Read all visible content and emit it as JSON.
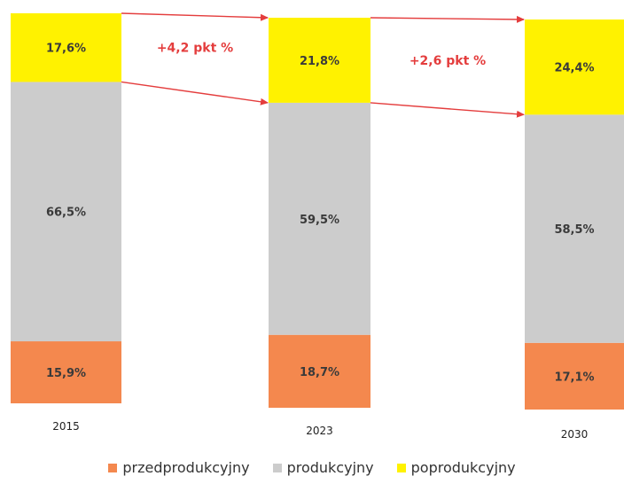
{
  "chart_data": {
    "type": "bar",
    "stacked": true,
    "categories": [
      "2015",
      "2023",
      "2030"
    ],
    "series": [
      {
        "name": "przedprodukcyjny",
        "values": [
          15.9,
          18.7,
          17.1
        ],
        "labels": [
          "15,9%",
          "18,7%",
          "17,1%"
        ],
        "color": "#f4884e"
      },
      {
        "name": "produkcyjny",
        "values": [
          66.5,
          59.5,
          58.5
        ],
        "labels": [
          "66,5%",
          "59,5%",
          "58,5%"
        ],
        "color": "#cccccc"
      },
      {
        "name": "poprodukcyjny",
        "values": [
          17.6,
          21.8,
          24.4
        ],
        "labels": [
          "17,6%",
          "21,8%",
          "24,4%"
        ],
        "color": "#fff200"
      }
    ],
    "annotations": [
      {
        "text": "+4,2 pkt %",
        "from": "2015",
        "to": "2023"
      },
      {
        "text": "+2,6 pkt %",
        "from": "2023",
        "to": "2030"
      }
    ],
    "ylim": [
      0,
      100
    ],
    "legend": "bottom",
    "grid": false
  }
}
